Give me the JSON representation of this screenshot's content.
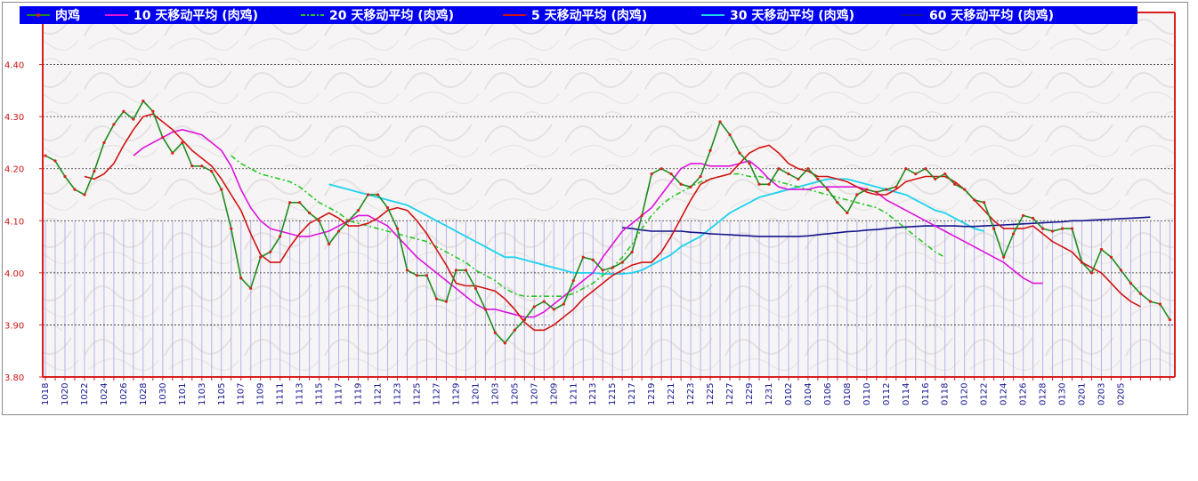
{
  "chart_data": {
    "type": "line",
    "title": "",
    "xlabel": "",
    "ylabel": "",
    "ylim": [
      3.8,
      4.5
    ],
    "y_ticks": [
      "4.40",
      "4.30",
      "4.20",
      "4.10",
      "4.00",
      "3.90",
      "3.80"
    ],
    "y_tick_values": [
      4.4,
      4.3,
      4.2,
      4.1,
      4.0,
      3.9,
      3.8
    ],
    "grid": "horizontal dotted",
    "legend_position": "top",
    "colors": {
      "frame_red": "#d81e1e",
      "legend_bg": "#0000ee",
      "price": "#1e8c1e",
      "price_dot": "#dc2020",
      "ma5": "#d21414",
      "ma10": "#dc14dc",
      "ma20": "#28c828",
      "ma30": "#1ed2f0",
      "ma60": "#14148c",
      "bars": "#b4b4f0"
    },
    "x_tick_labels": [
      "1018",
      "1020",
      "1022",
      "1024",
      "1026",
      "1028",
      "1030",
      "1101",
      "1103",
      "1105",
      "1107",
      "1109",
      "1111",
      "1113",
      "1115",
      "1117",
      "1119",
      "1121",
      "1123",
      "1125",
      "1127",
      "1129",
      "1201",
      "1203",
      "1205",
      "1207",
      "1209",
      "1211",
      "1213",
      "1215",
      "1217",
      "1219",
      "1221",
      "1223",
      "1225",
      "1227",
      "1229",
      "1231",
      "0102",
      "0104",
      "0106",
      "0108",
      "0110",
      "0112",
      "0114",
      "0116",
      "0118",
      "0120",
      "0122",
      "0124",
      "0126",
      "0128",
      "0130",
      "0201",
      "0203",
      "0205"
    ],
    "series": [
      {
        "name": "肉鸡",
        "legend_label": "肉鸡",
        "values": [
          4.225,
          4.215,
          4.185,
          4.16,
          4.15,
          4.195,
          4.25,
          4.285,
          4.31,
          4.295,
          4.33,
          4.31,
          4.26,
          4.23,
          4.25,
          4.205,
          4.205,
          4.195,
          4.16,
          4.085,
          3.99,
          3.97,
          4.03,
          4.04,
          4.07,
          4.135,
          4.135,
          4.115,
          4.1,
          4.055,
          4.08,
          4.1,
          4.12,
          4.15,
          4.15,
          4.125,
          4.085,
          4.005,
          3.995,
          3.995,
          3.95,
          3.945,
          4.005,
          4.005,
          3.97,
          3.93,
          3.885,
          3.865,
          3.89,
          3.91,
          3.935,
          3.945,
          3.93,
          3.94,
          3.985,
          4.03,
          4.025,
          4.005,
          4.01,
          4.02,
          4.04,
          4.11,
          4.19,
          4.2,
          4.19,
          4.17,
          4.165,
          4.185,
          4.235,
          4.29,
          4.265,
          4.23,
          4.21,
          4.17,
          4.17,
          4.2,
          4.19,
          4.18,
          4.2,
          4.18,
          4.16,
          4.135,
          4.115,
          4.15,
          4.16,
          4.155,
          4.16,
          4.165,
          4.2,
          4.19,
          4.2,
          4.18,
          4.19,
          4.17,
          4.16,
          4.14,
          4.135,
          4.085,
          4.03,
          4.075,
          4.11,
          4.105,
          4.085,
          4.08,
          4.085,
          4.085,
          4.02,
          4.0,
          4.045,
          4.03,
          4.005,
          3.98,
          3.96,
          3.945,
          3.94,
          3.91
        ]
      },
      {
        "name": "10 天移动平均 (肉鸡)",
        "legend_label": "10  天移动平均 (肉鸡)",
        "start_index": 9,
        "values": [
          4.225,
          4.24,
          4.25,
          4.26,
          4.27,
          4.275,
          4.27,
          4.265,
          4.25,
          4.235,
          4.205,
          4.16,
          4.125,
          4.1,
          4.085,
          4.08,
          4.075,
          4.07,
          4.07,
          4.075,
          4.08,
          4.09,
          4.1,
          4.11,
          4.11,
          4.1,
          4.09,
          4.07,
          4.05,
          4.03,
          4.015,
          4.0,
          3.985,
          3.97,
          3.955,
          3.94,
          3.93,
          3.93,
          3.925,
          3.92,
          3.915,
          3.915,
          3.925,
          3.94,
          3.955,
          3.97,
          3.985,
          4.0,
          4.03,
          4.055,
          4.08,
          4.095,
          4.11,
          4.125,
          4.15,
          4.175,
          4.2,
          4.21,
          4.21,
          4.205,
          4.205,
          4.205,
          4.21,
          4.215,
          4.2,
          4.18,
          4.165,
          4.16,
          4.16,
          4.16,
          4.165,
          4.165,
          4.165,
          4.165,
          4.165,
          4.16,
          4.155,
          4.14,
          4.13,
          4.12,
          4.11,
          4.1,
          4.09,
          4.08,
          4.07,
          4.06,
          4.05,
          4.04,
          4.03,
          4.02,
          4.005,
          3.99,
          3.98,
          3.98
        ]
      },
      {
        "name": "20 天移动平均 (肉鸡)",
        "legend_label": "20  天移动平均 (肉鸡)",
        "start_index": 19,
        "values": [
          4.225,
          4.21,
          4.2,
          4.19,
          4.185,
          4.18,
          4.175,
          4.165,
          4.15,
          4.135,
          4.125,
          4.115,
          4.1,
          4.095,
          4.09,
          4.085,
          4.08,
          4.075,
          4.07,
          4.065,
          4.06,
          4.05,
          4.04,
          4.03,
          4.02,
          4.005,
          3.995,
          3.985,
          3.97,
          3.96,
          3.955,
          3.955,
          3.955,
          3.955,
          3.955,
          3.96,
          3.97,
          3.98,
          3.995,
          4.01,
          4.03,
          4.055,
          4.085,
          4.11,
          4.13,
          4.145,
          4.155,
          4.165,
          4.175,
          4.18,
          4.185,
          4.19,
          4.19,
          4.185,
          4.185,
          4.18,
          4.175,
          4.17,
          4.165,
          4.16,
          4.155,
          4.15,
          4.145,
          4.14,
          4.135,
          4.13,
          4.125,
          4.115,
          4.1,
          4.085,
          4.07,
          4.055,
          4.04,
          4.03
        ]
      },
      {
        "name": "5 天移动平均 (肉鸡)",
        "legend_label": "5  天移动平均 (肉鸡)",
        "start_index": 4,
        "values": [
          4.185,
          4.18,
          4.19,
          4.21,
          4.245,
          4.275,
          4.3,
          4.305,
          4.29,
          4.275,
          4.255,
          4.235,
          4.22,
          4.205,
          4.18,
          4.15,
          4.12,
          4.075,
          4.035,
          4.02,
          4.02,
          4.05,
          4.075,
          4.095,
          4.105,
          4.115,
          4.105,
          4.09,
          4.09,
          4.095,
          4.105,
          4.12,
          4.125,
          4.12,
          4.1,
          4.075,
          4.045,
          4.015,
          3.98,
          3.975,
          3.975,
          3.97,
          3.965,
          3.95,
          3.93,
          3.905,
          3.89,
          3.89,
          3.9,
          3.915,
          3.93,
          3.95,
          3.965,
          3.98,
          3.995,
          4.005,
          4.015,
          4.02,
          4.02,
          4.04,
          4.07,
          4.105,
          4.14,
          4.17,
          4.18,
          4.185,
          4.19,
          4.21,
          4.23,
          4.24,
          4.245,
          4.23,
          4.21,
          4.2,
          4.195,
          4.185,
          4.185,
          4.18,
          4.175,
          4.165,
          4.155,
          4.15,
          4.15,
          4.16,
          4.175,
          4.18,
          4.185,
          4.185,
          4.185,
          4.175,
          4.16,
          4.14,
          4.12,
          4.1,
          4.085,
          4.085,
          4.085,
          4.09,
          4.075,
          4.06,
          4.05,
          4.04,
          4.02,
          4.01,
          4.0,
          3.98,
          3.96,
          3.945,
          3.935
        ]
      },
      {
        "name": "30 天移动平均 (肉鸡)",
        "legend_label": "30  天移动平均 (肉鸡)",
        "start_index": 29,
        "values": [
          4.17,
          4.165,
          4.16,
          4.155,
          4.15,
          4.145,
          4.14,
          4.135,
          4.13,
          4.12,
          4.11,
          4.1,
          4.09,
          4.08,
          4.07,
          4.06,
          4.05,
          4.04,
          4.03,
          4.03,
          4.025,
          4.02,
          4.015,
          4.01,
          4.005,
          4.0,
          4.0,
          4.0,
          3.998,
          3.998,
          3.998,
          4.0,
          4.005,
          4.015,
          4.025,
          4.035,
          4.05,
          4.06,
          4.07,
          4.085,
          4.1,
          4.115,
          4.125,
          4.135,
          4.145,
          4.15,
          4.155,
          4.16,
          4.165,
          4.17,
          4.175,
          4.18,
          4.18,
          4.18,
          4.175,
          4.17,
          4.165,
          4.16,
          4.155,
          4.15,
          4.14,
          4.13,
          4.12,
          4.115,
          4.105,
          4.095,
          4.085,
          4.08
        ]
      },
      {
        "name": "60 天移动平均 (肉鸡)",
        "legend_label": "60  天移动平均 (肉鸡)",
        "start_index": 59,
        "values": [
          4.087,
          4.085,
          4.082,
          4.08,
          4.08,
          4.08,
          4.08,
          4.078,
          4.077,
          4.075,
          4.074,
          4.073,
          4.072,
          4.071,
          4.07,
          4.07,
          4.07,
          4.07,
          4.07,
          4.071,
          4.073,
          4.075,
          4.077,
          4.079,
          4.08,
          4.082,
          4.083,
          4.085,
          4.087,
          4.088,
          4.089,
          4.09,
          4.09,
          4.09,
          4.09,
          4.089,
          4.089,
          4.09,
          4.091,
          4.092,
          4.093,
          4.094,
          4.095,
          4.096,
          4.097,
          4.098,
          4.1,
          4.1,
          4.101,
          4.102,
          4.103,
          4.104,
          4.105,
          4.106,
          4.107
        ]
      }
    ]
  }
}
